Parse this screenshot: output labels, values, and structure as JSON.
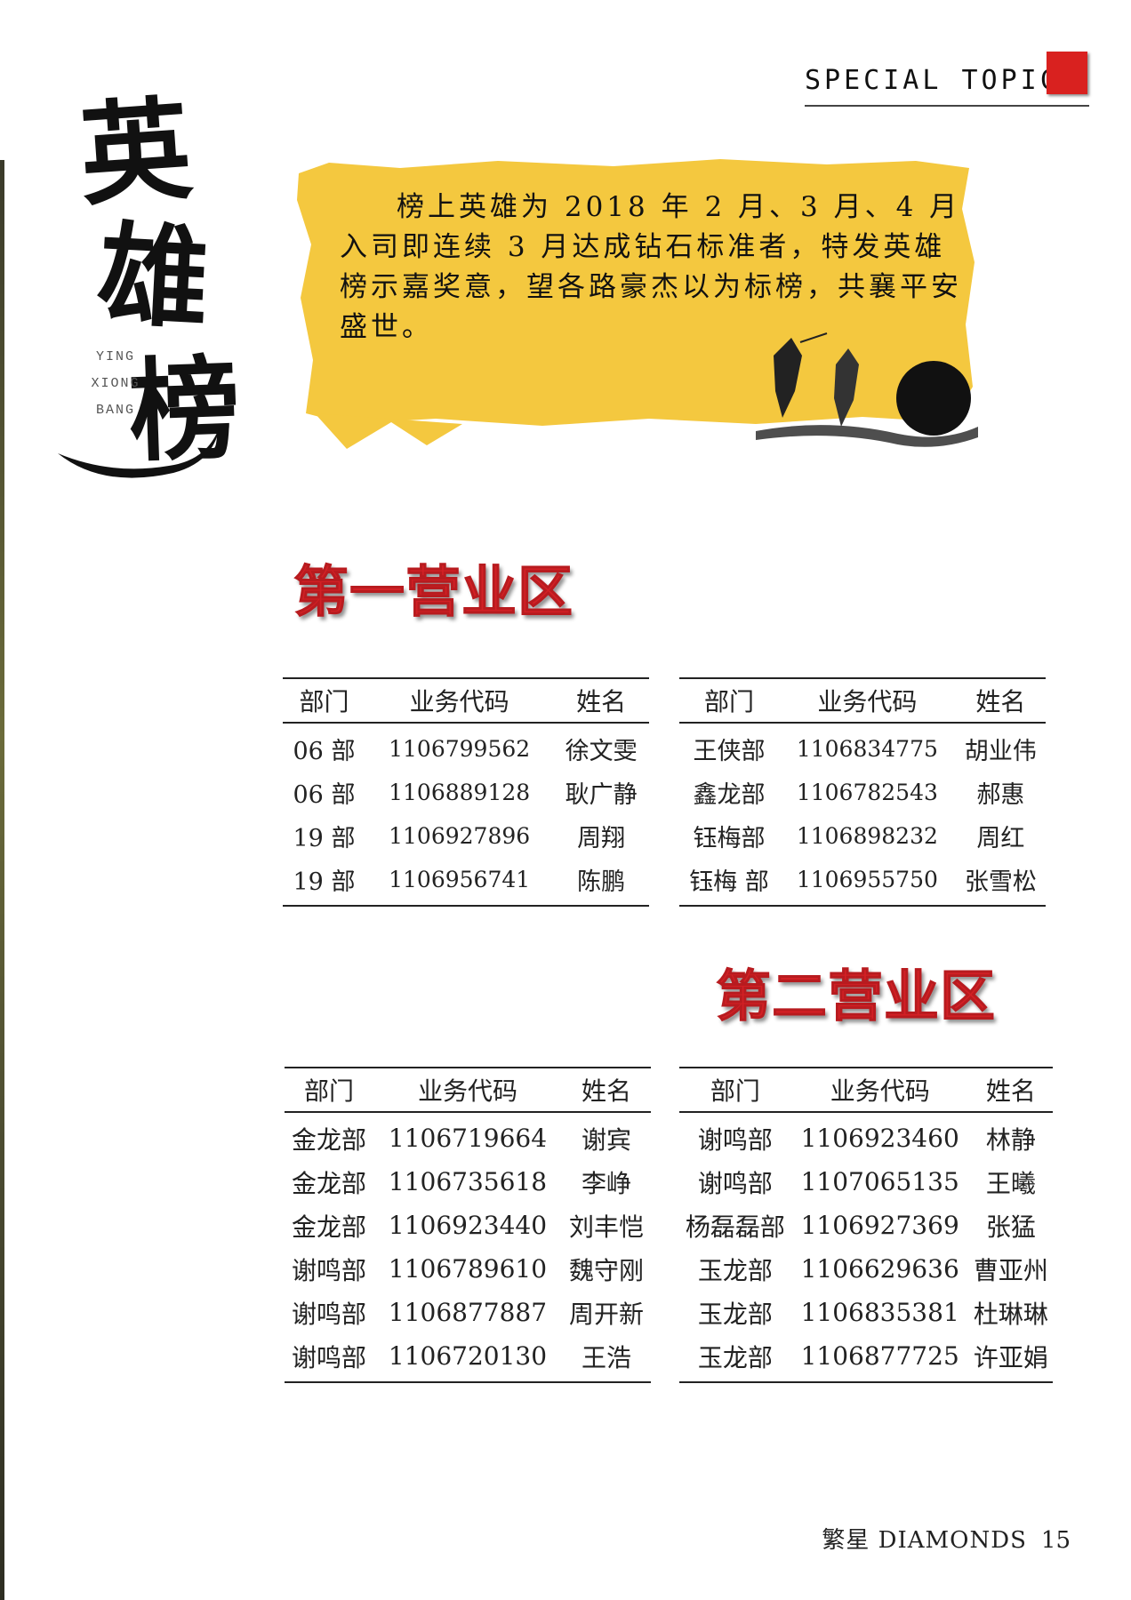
{
  "header": {
    "label": "SPECIAL TOPIC",
    "accent_color": "#d9211f"
  },
  "title": {
    "chars": [
      "英",
      "雄",
      "榜"
    ],
    "pinyin": [
      "YING",
      "XIONG",
      "BANG"
    ]
  },
  "banner": {
    "color": "#f4c83f",
    "text": "榜上英雄为 2018 年 2 月、3 月、4 月入司即连续 3 月达成钻石标准者，特发英雄榜示嘉奖意，望各路豪杰以为标榜，共襄平安盛世。"
  },
  "zones": [
    {
      "title": "第一营业区",
      "tables": [
        {
          "headers": [
            "部门",
            "业务代码",
            "姓名"
          ],
          "rows": [
            [
              "06 部",
              "1106799562",
              "徐文雯"
            ],
            [
              "06 部",
              "1106889128",
              "耿广静"
            ],
            [
              "19 部",
              "1106927896",
              "周翔"
            ],
            [
              "19 部",
              "1106956741",
              "陈鹏"
            ]
          ]
        },
        {
          "headers": [
            "部门",
            "业务代码",
            "姓名"
          ],
          "rows": [
            [
              "王侠部",
              "1106834775",
              "胡业伟"
            ],
            [
              "鑫龙部",
              "1106782543",
              "郝惠"
            ],
            [
              "钰梅部",
              "1106898232",
              "周红"
            ],
            [
              "钰梅 部",
              "1106955750",
              "张雪松"
            ]
          ]
        }
      ]
    },
    {
      "title": "第二营业区",
      "tables": [
        {
          "headers": [
            "部门",
            "业务代码",
            "姓名"
          ],
          "rows": [
            [
              "金龙部",
              "1106719664",
              "谢宾"
            ],
            [
              "金龙部",
              "1106735618",
              "李峥"
            ],
            [
              "金龙部",
              "1106923440",
              "刘丰恺"
            ],
            [
              "谢鸣部",
              "1106789610",
              "魏守刚"
            ],
            [
              "谢鸣部",
              "1106877887",
              "周开新"
            ],
            [
              "谢鸣部",
              "1106720130",
              "王浩"
            ]
          ]
        },
        {
          "headers": [
            "部门",
            "业务代码",
            "姓名"
          ],
          "rows": [
            [
              "谢鸣部",
              "1106923460",
              "林静"
            ],
            [
              "谢鸣部",
              "1107065135",
              "王曦"
            ],
            [
              "杨磊磊部",
              "1106927369",
              "张猛"
            ],
            [
              "玉龙部",
              "1106629636",
              "曹亚州"
            ],
            [
              "玉龙部",
              "1106835381",
              "杜琳琳"
            ],
            [
              "玉龙部",
              "1106877725",
              "许亚娟"
            ]
          ]
        }
      ]
    }
  ],
  "footer": {
    "brand": "繁星 DIAMONDS",
    "page": "15"
  }
}
